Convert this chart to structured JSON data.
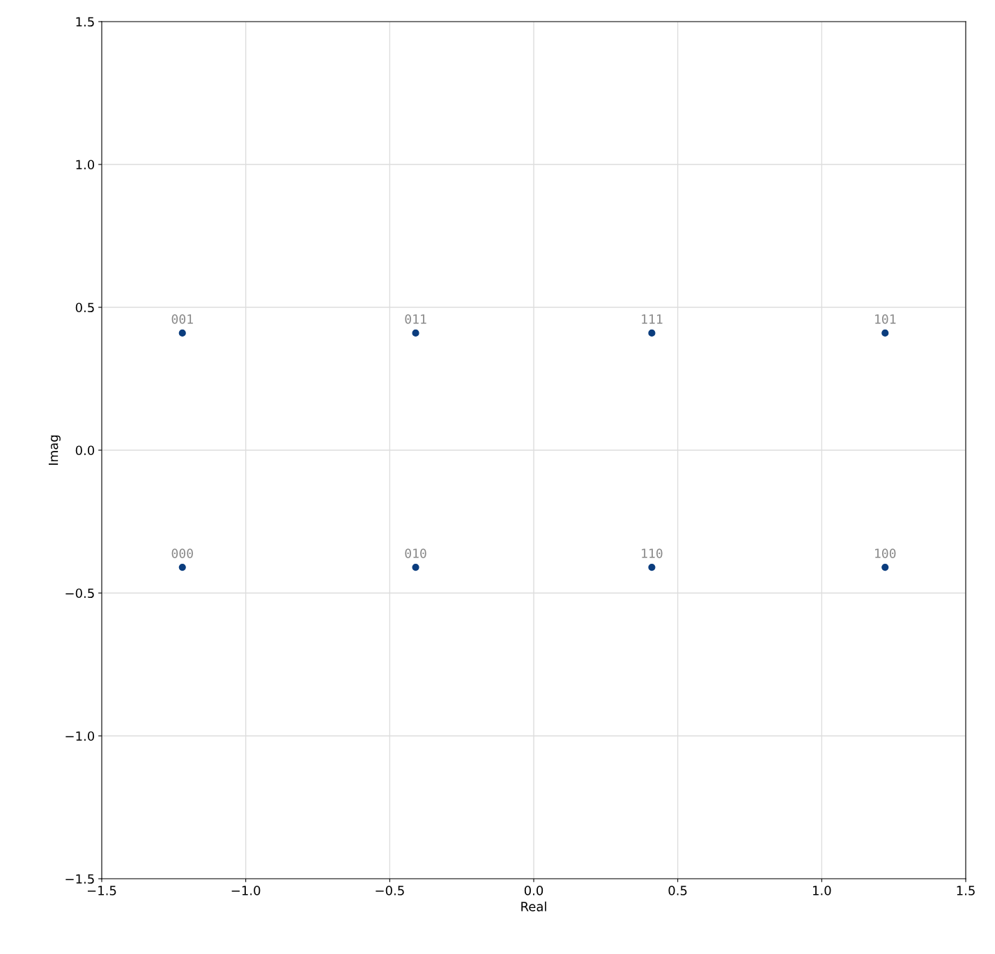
{
  "chart_data": {
    "type": "scatter",
    "xlabel": "Real",
    "ylabel": "Imag",
    "series": [
      {
        "color": "#0b3d7e",
        "x": [
          -1.22,
          -1.22,
          -0.41,
          -0.41,
          0.41,
          0.41,
          1.22,
          1.22
        ],
        "values": [
          -0.41,
          0.41,
          -0.41,
          0.41,
          0.41,
          -0.41,
          0.41,
          -0.41
        ]
      }
    ],
    "annotations": [
      {
        "text": "000",
        "x": -1.22,
        "y": -0.41
      },
      {
        "text": "001",
        "x": -1.22,
        "y": 0.41
      },
      {
        "text": "010",
        "x": -0.41,
        "y": -0.41
      },
      {
        "text": "011",
        "x": -0.41,
        "y": 0.41
      },
      {
        "text": "111",
        "x": 0.41,
        "y": 0.41
      },
      {
        "text": "110",
        "x": 0.41,
        "y": -0.41
      },
      {
        "text": "101",
        "x": 1.22,
        "y": 0.41
      },
      {
        "text": "100",
        "x": 1.22,
        "y": -0.41
      }
    ],
    "xlim": [
      -1.5,
      1.5
    ],
    "ylim": [
      -1.5,
      1.5
    ],
    "xticks": [
      {
        "value": -1.5,
        "label": "−1.5"
      },
      {
        "value": -1.0,
        "label": "−1.0"
      },
      {
        "value": -0.5,
        "label": "−0.5"
      },
      {
        "value": 0,
        "label": "0.0"
      },
      {
        "value": 0.5,
        "label": "0.5"
      },
      {
        "value": 1.0,
        "label": "1.0"
      },
      {
        "value": 1.5,
        "label": "1.5"
      }
    ],
    "yticks": [
      {
        "value": -1.5,
        "label": "−1.5"
      },
      {
        "value": -1.0,
        "label": "−1.0"
      },
      {
        "value": -0.5,
        "label": "−0.5"
      },
      {
        "value": 0,
        "label": "0.0"
      },
      {
        "value": 0.5,
        "label": "0.5"
      },
      {
        "value": 1.0,
        "label": "1.0"
      },
      {
        "value": 1.5,
        "label": "1.5"
      }
    ],
    "grid": true,
    "marker": "circle"
  }
}
